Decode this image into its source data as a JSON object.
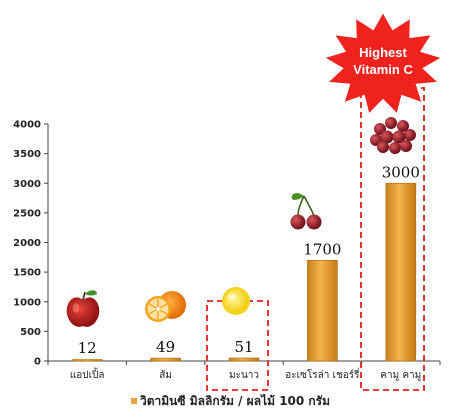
{
  "chart_data": {
    "type": "bar",
    "categories": [
      "แอปเปิ้ล",
      "ส้ม",
      "มะนาว",
      "อะเซโรล่า เชอร์รี่",
      "คามู คามู"
    ],
    "values": [
      12,
      49,
      51,
      1700,
      3000
    ],
    "data_labels": [
      "12",
      "49",
      "51",
      "1700",
      "3000"
    ],
    "yticks": [
      "0",
      "500",
      "1000",
      "1500",
      "2000",
      "2500",
      "3000",
      "3500",
      "4000"
    ],
    "ylim": [
      0,
      4000
    ],
    "legend": "วิตามินซี มิลลิกรัม / ผลไม้ 100 กรัม",
    "legend_position": "bottom",
    "annotation": [
      "Highest",
      "Vitamin C"
    ],
    "highlighted": [
      "มะนาว",
      "คามู คามู"
    ],
    "icons": [
      "apple-icon",
      "orange-icon",
      "lemon-icon",
      "cherry-icon",
      "camu-camu-icon"
    ],
    "colors": {
      "bar": "#e8a33a",
      "bar_edge": "#b46d12",
      "highlight_border": "#e0201b",
      "burst": "#f0221d"
    }
  }
}
